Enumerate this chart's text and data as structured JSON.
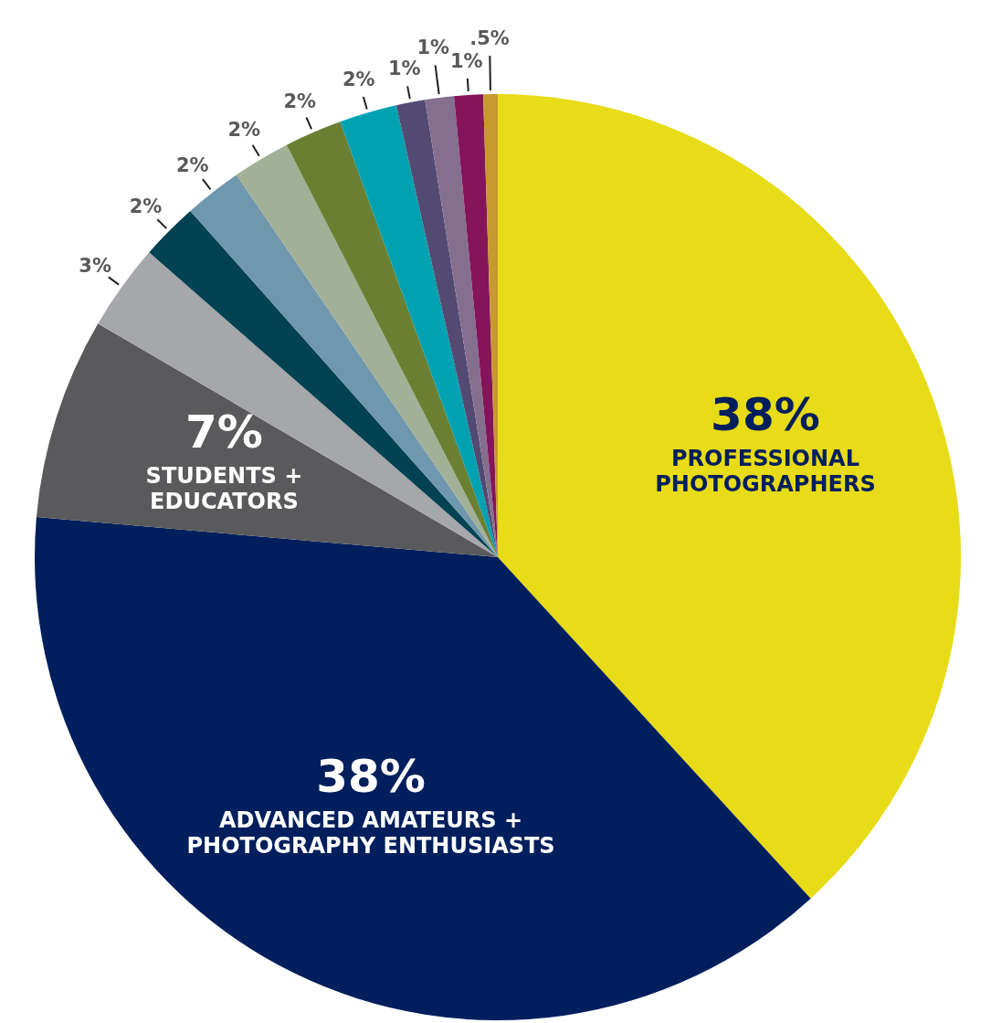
{
  "chart_data": {
    "type": "pie",
    "categories": [
      "PROFESSIONAL\nPHOTOGRAPHERS",
      "ADVANCED AMATEURS +\nPHOTOGRAPHY ENTHUSIASTS",
      "STUDENTS +\nEDUCATORS",
      null,
      null,
      null,
      null,
      null,
      null,
      null,
      null,
      null,
      null
    ],
    "values": [
      38,
      38,
      7,
      3,
      2,
      2,
      2,
      2,
      2,
      1,
      1,
      1,
      0.5
    ],
    "colors": [
      "#e8db17",
      "#001f5c",
      "#5a5a5c",
      "#a6a7aa",
      "#024252",
      "#6f97ad",
      "#a2b098",
      "#6a7f32",
      "#00a2b1",
      "#524a72",
      "#856f8e",
      "#84155a",
      "#c8992e"
    ],
    "value_labels": [
      "38%",
      "38%",
      "7%",
      "3%",
      "2%",
      "2%",
      "2%",
      "2%",
      "2%",
      "1%",
      "1%",
      "1%",
      ".5%"
    ],
    "legend": false
  }
}
